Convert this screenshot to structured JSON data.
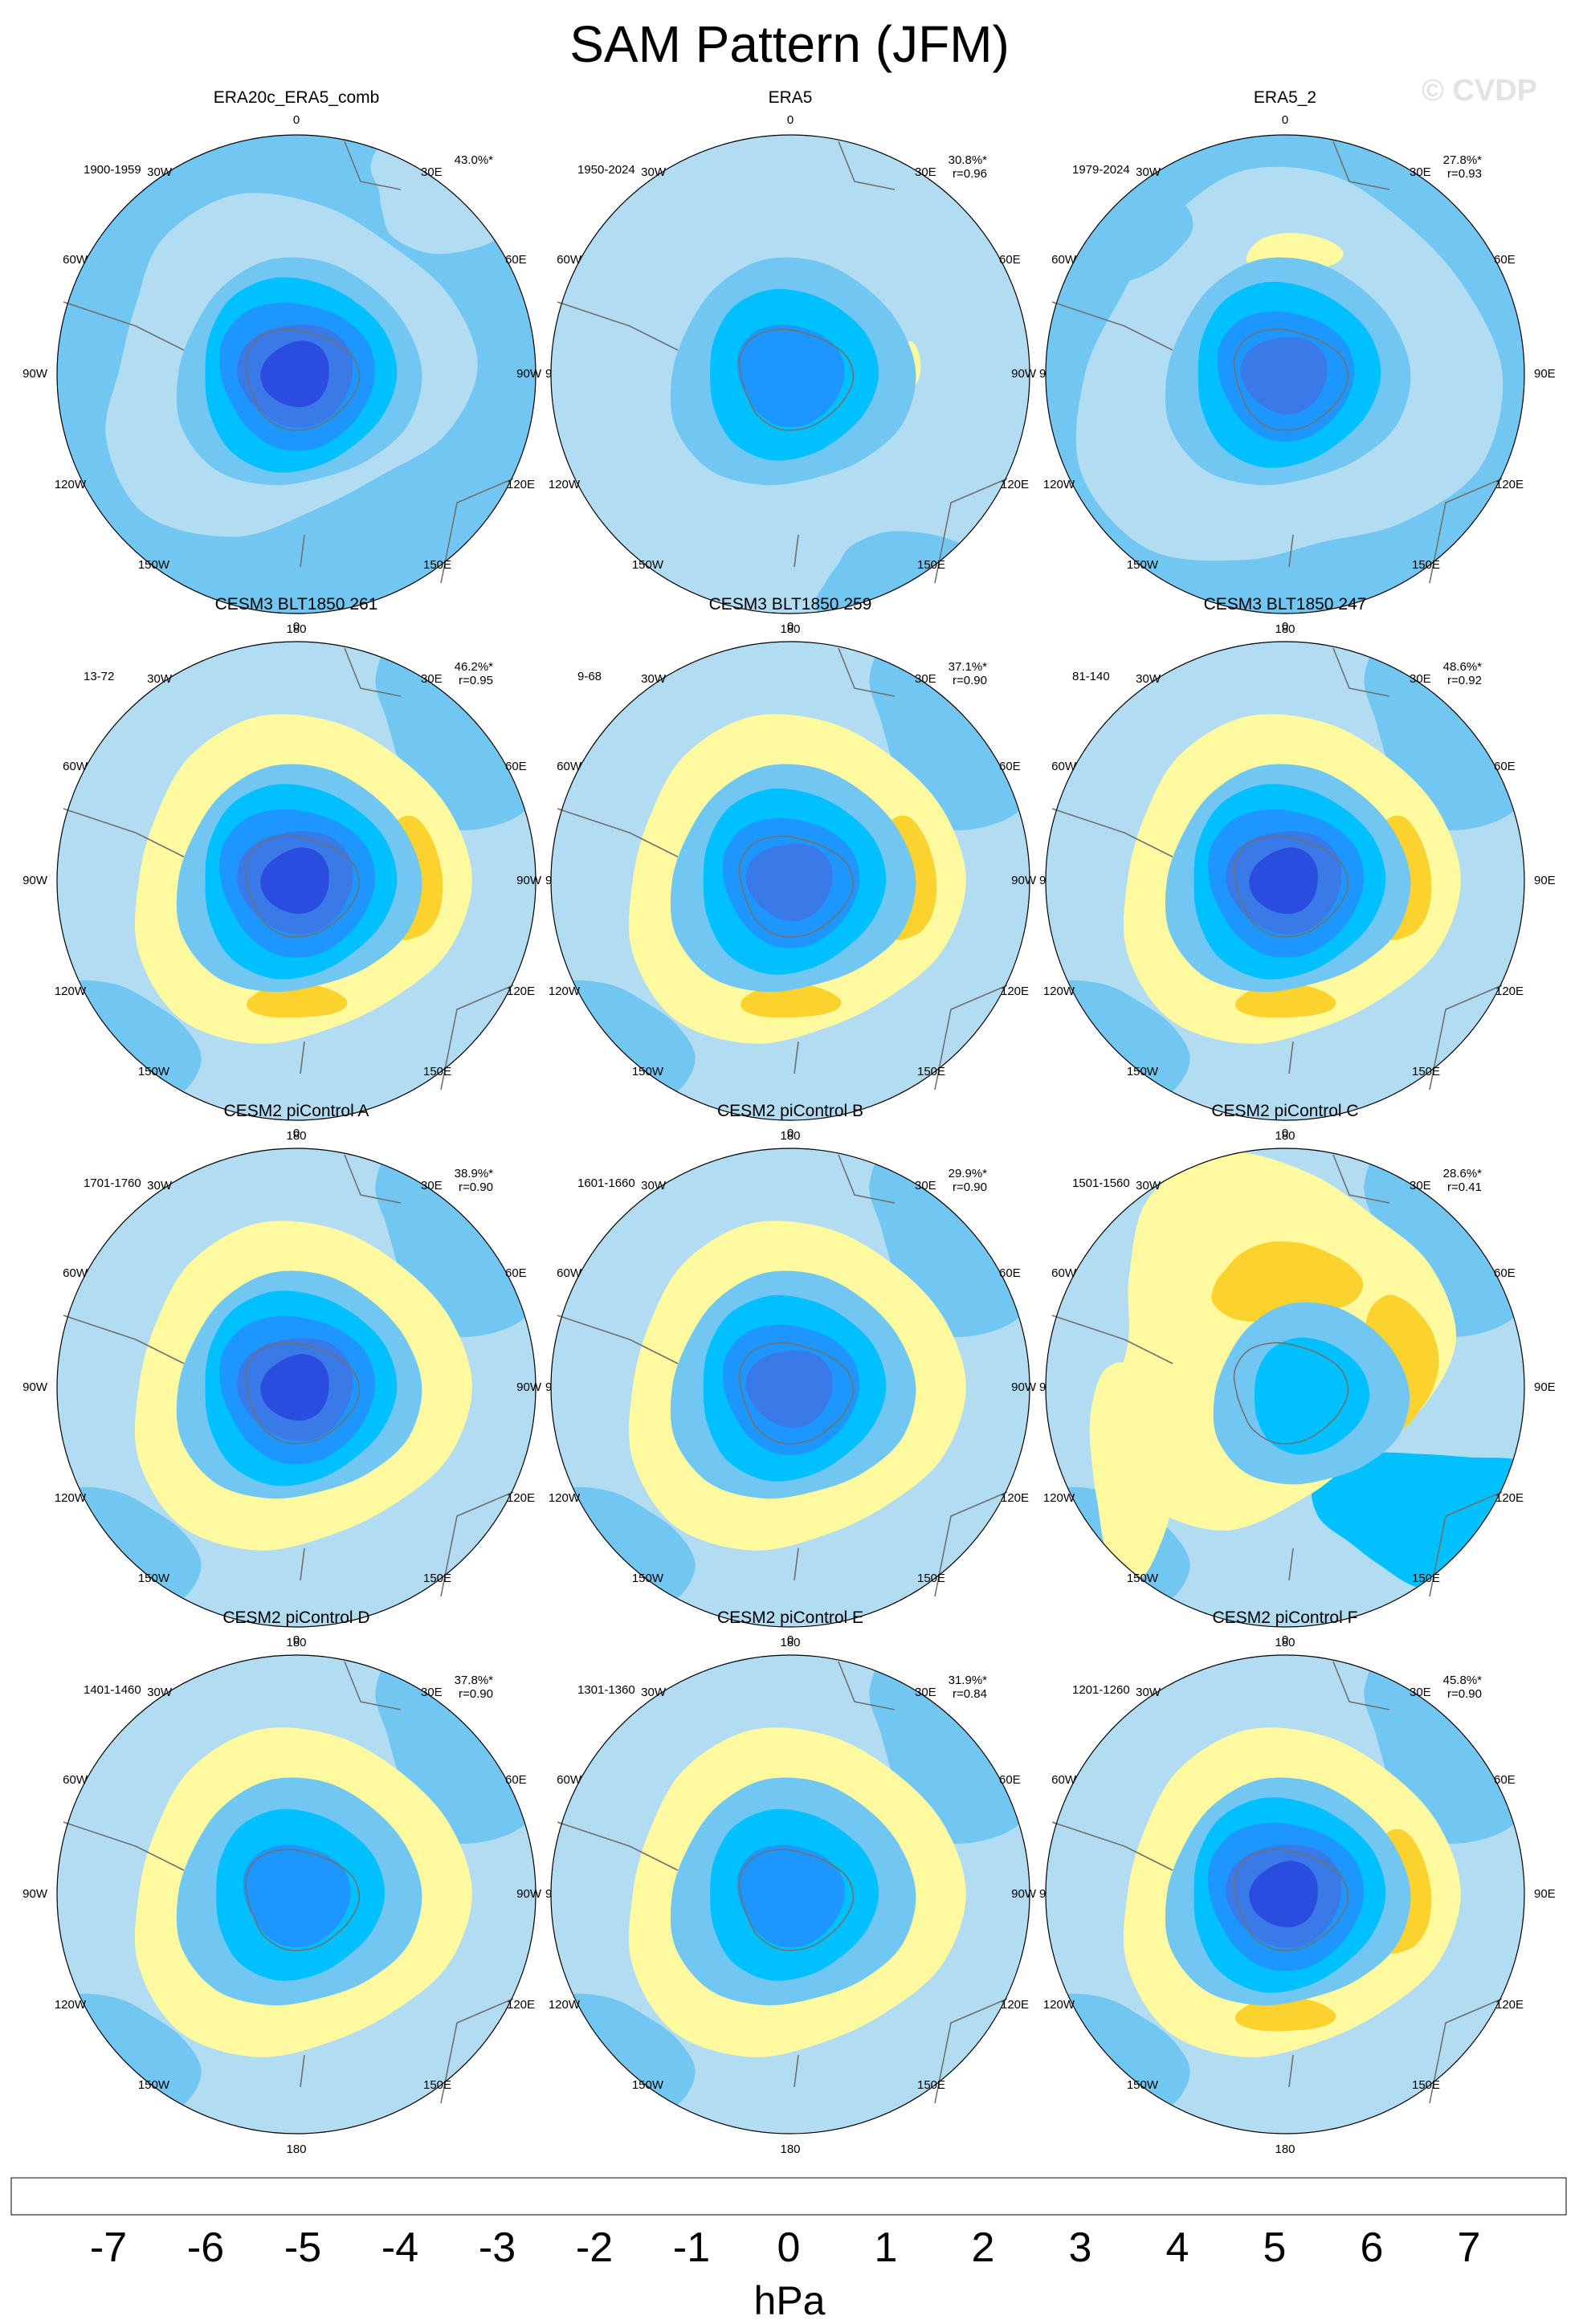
{
  "page": {
    "title": "SAM Pattern (JFM)",
    "watermark": "© CVDP"
  },
  "chart_data": {
    "type": "heatmap",
    "description_units": "hPa",
    "projection_labels": {
      "top": "0",
      "bottom": "180",
      "left_upper": "30W",
      "right_upper": "30E",
      "left_mid_upper": "60W",
      "right_mid_upper": "60E",
      "left_center": "90W",
      "right_center": "90E",
      "left_mid_lower": "120W",
      "right_mid_lower": "120E",
      "left_lower": "150W",
      "right_lower": "150E"
    },
    "panels": [
      {
        "title": "ERA20c_ERA5_comb",
        "years": "1900-1959",
        "pct": "43.0%*",
        "r": "",
        "pattern": "obs_weak",
        "center_min": -5
      },
      {
        "title": "ERA5",
        "years": "1950-2024",
        "pct": "30.8%*",
        "r": "r=0.96",
        "pattern": "obs_yellow",
        "center_min": -3
      },
      {
        "title": "ERA5_2",
        "years": "1979-2024",
        "pct": "27.8%*",
        "r": "r=0.93",
        "pattern": "obs_mixed",
        "center_min": -4
      },
      {
        "title": "CESM3 BLT1850 261",
        "years": "13-72",
        "pct": "46.2%*",
        "r": "r=0.95",
        "pattern": "model_strong",
        "center_min": -5
      },
      {
        "title": "CESM3 BLT1850 259",
        "years": "9-68",
        "pct": "37.1%*",
        "r": "r=0.90",
        "pattern": "model_strong",
        "center_min": -4
      },
      {
        "title": "CESM3 BLT1850 247",
        "years": "81-140",
        "pct": "48.6%*",
        "r": "r=0.92",
        "pattern": "model_strong",
        "center_min": -5
      },
      {
        "title": "CESM2 piControl A",
        "years": "1701-1760",
        "pct": "38.9%*",
        "r": "r=0.90",
        "pattern": "model_medium",
        "center_min": -5
      },
      {
        "title": "CESM2 piControl B",
        "years": "1601-1660",
        "pct": "29.9%*",
        "r": "r=0.90",
        "pattern": "model_blue",
        "center_min": -4
      },
      {
        "title": "CESM2 piControl C",
        "years": "1501-1560",
        "pct": "28.6%*",
        "r": "r=0.41",
        "pattern": "model_shifted",
        "center_min": -2
      },
      {
        "title": "CESM2 piControl D",
        "years": "1401-1460",
        "pct": "37.8%*",
        "r": "r=0.90",
        "pattern": "model_medium",
        "center_min": -3
      },
      {
        "title": "CESM2 piControl E",
        "years": "1301-1360",
        "pct": "31.9%*",
        "r": "r=0.84",
        "pattern": "model_medium",
        "center_min": -3
      },
      {
        "title": "CESM2 piControl F",
        "years": "1201-1260",
        "pct": "45.8%*",
        "r": "r=0.90",
        "pattern": "model_strong",
        "center_min": -5
      }
    ],
    "colorbar": {
      "label": "hPa",
      "ticks": [
        "-7",
        "-6",
        "-5",
        "-4",
        "-3",
        "-2",
        "-1",
        "0",
        "1",
        "2",
        "3",
        "4",
        "5",
        "6",
        "7"
      ],
      "colors": [
        "#8a2be2",
        "#1414ff",
        "#2a4de0",
        "#3a7ae8",
        "#1e96ff",
        "#00c0ff",
        "#72c7f2",
        "#b2dcf2",
        "#fffaa0",
        "#fcd22e",
        "#fca800",
        "#fc7800",
        "#fc3c00",
        "#ee0000",
        "#d02020",
        "#ffb4b4"
      ]
    }
  }
}
